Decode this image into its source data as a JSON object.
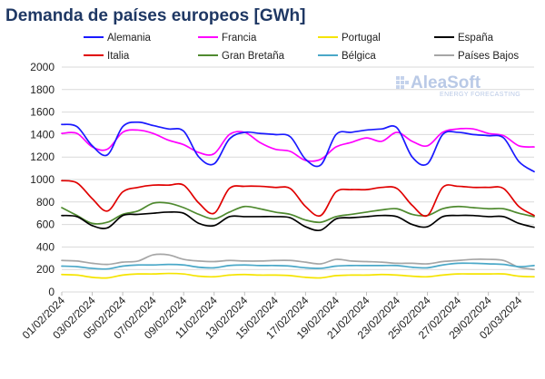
{
  "chart_data": {
    "type": "line",
    "title": "Demanda de países europeos [GWh]",
    "xlabel": "",
    "ylabel": "",
    "ylim": [
      0,
      2000
    ],
    "yticks": [
      0,
      200,
      400,
      600,
      800,
      1000,
      1200,
      1400,
      1600,
      1800,
      2000
    ],
    "grid": true,
    "legend_position": "top",
    "x": [
      "01/02/2024",
      "02/02/2024",
      "03/02/2024",
      "04/02/2024",
      "05/02/2024",
      "06/02/2024",
      "07/02/2024",
      "08/02/2024",
      "09/02/2024",
      "10/02/2024",
      "11/02/2024",
      "12/02/2024",
      "13/02/2024",
      "14/02/2024",
      "15/02/2024",
      "16/02/2024",
      "17/02/2024",
      "18/02/2024",
      "19/02/2024",
      "20/02/2024",
      "21/02/2024",
      "22/02/2024",
      "23/02/2024",
      "24/02/2024",
      "25/02/2024",
      "26/02/2024",
      "27/02/2024",
      "28/02/2024",
      "29/02/2024",
      "01/03/2024",
      "02/03/2024",
      "03/03/2024"
    ],
    "xtick_labels": [
      "01/02/2024",
      "03/02/2024",
      "05/02/2024",
      "07/02/2024",
      "09/02/2024",
      "11/02/2024",
      "13/02/2024",
      "15/02/2024",
      "17/02/2024",
      "19/02/2024",
      "21/02/2024",
      "23/02/2024",
      "25/02/2024",
      "27/02/2024",
      "29/02/2024",
      "02/03/2024"
    ],
    "series": [
      {
        "name": "Alemania",
        "color": "#1a1aff",
        "values": [
          1490,
          1470,
          1300,
          1220,
          1470,
          1510,
          1480,
          1450,
          1430,
          1200,
          1140,
          1360,
          1420,
          1410,
          1400,
          1380,
          1180,
          1130,
          1400,
          1420,
          1440,
          1450,
          1460,
          1200,
          1140,
          1400,
          1420,
          1400,
          1390,
          1370,
          1160,
          1070
        ]
      },
      {
        "name": "Francia",
        "color": "#ff00ff",
        "values": [
          1410,
          1410,
          1290,
          1270,
          1420,
          1440,
          1410,
          1350,
          1310,
          1240,
          1230,
          1400,
          1420,
          1330,
          1270,
          1250,
          1170,
          1180,
          1290,
          1330,
          1370,
          1340,
          1420,
          1340,
          1300,
          1420,
          1450,
          1450,
          1410,
          1390,
          1300,
          1290
        ]
      },
      {
        "name": "Portugal",
        "color": "#f5e400",
        "values": [
          155,
          150,
          130,
          125,
          150,
          160,
          160,
          165,
          160,
          140,
          135,
          150,
          155,
          150,
          150,
          145,
          130,
          125,
          145,
          150,
          150,
          155,
          150,
          140,
          135,
          150,
          160,
          160,
          160,
          160,
          140,
          135
        ]
      },
      {
        "name": "España",
        "color": "#000000",
        "values": [
          680,
          670,
          590,
          570,
          680,
          690,
          700,
          710,
          700,
          610,
          590,
          670,
          670,
          670,
          670,
          660,
          580,
          550,
          650,
          660,
          670,
          680,
          670,
          600,
          580,
          670,
          680,
          680,
          670,
          670,
          610,
          575
        ]
      },
      {
        "name": "Italia",
        "color": "#e00000",
        "values": [
          990,
          970,
          830,
          720,
          890,
          930,
          950,
          950,
          950,
          790,
          700,
          920,
          940,
          940,
          930,
          920,
          760,
          680,
          890,
          910,
          910,
          930,
          920,
          770,
          680,
          930,
          940,
          930,
          930,
          920,
          760,
          680
        ]
      },
      {
        "name": "Gran Bretaña",
        "color": "#4f8a2f",
        "values": [
          750,
          680,
          610,
          620,
          690,
          720,
          790,
          790,
          750,
          690,
          650,
          710,
          760,
          740,
          710,
          690,
          640,
          620,
          670,
          690,
          710,
          730,
          740,
          690,
          680,
          740,
          760,
          750,
          740,
          740,
          700,
          670
        ]
      },
      {
        "name": "Bélgica",
        "color": "#4aa8c8",
        "values": [
          230,
          225,
          210,
          205,
          230,
          240,
          240,
          245,
          240,
          220,
          215,
          235,
          240,
          235,
          235,
          230,
          215,
          210,
          230,
          235,
          235,
          235,
          235,
          220,
          215,
          240,
          255,
          255,
          250,
          245,
          225,
          235
        ]
      },
      {
        "name": "Países Bajos",
        "color": "#a6a6a6",
        "values": [
          280,
          275,
          255,
          245,
          265,
          275,
          330,
          330,
          290,
          275,
          270,
          280,
          275,
          275,
          280,
          280,
          265,
          250,
          290,
          275,
          270,
          265,
          255,
          255,
          250,
          270,
          280,
          290,
          290,
          280,
          220,
          200
        ]
      }
    ]
  },
  "branding": {
    "name": "AleaSoft",
    "tagline": "ENERGY FORECASTING"
  }
}
